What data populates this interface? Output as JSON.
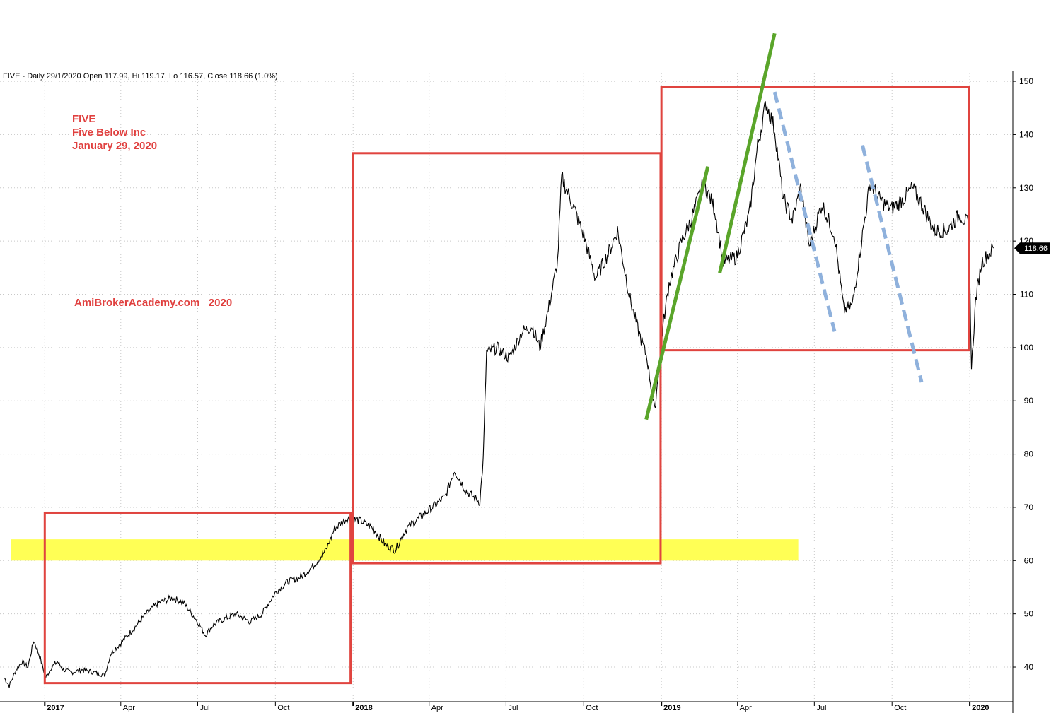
{
  "header": {
    "info": "FIVE - Daily 29/1/2020 Open 117.99, Hi 119.17, Lo 116.57, Close 118.66 (1.0%)"
  },
  "annotations": {
    "ticker": "FIVE",
    "company": "Five Below Inc",
    "date": "January 29, 2020",
    "watermark": "AmiBrokerAcademy.com   2020"
  },
  "last_price_label": "118.66",
  "colors": {
    "price_line": "#000000",
    "box": "#e0443f",
    "support_band": "#ffff55",
    "trend_up": "#5aa52a",
    "trend_down": "#8fb1dc",
    "grid": "#c8c8c8",
    "annotation_text": "#e0403f",
    "price_tag_bg": "#000000"
  },
  "chart_data": {
    "type": "line",
    "series": [
      {
        "values": [
          [
            "2016-11-14",
            38
          ],
          [
            "2016-11-20",
            36.5
          ],
          [
            "2016-11-28",
            39.5
          ],
          [
            "2016-12-05",
            41
          ],
          [
            "2016-12-12",
            40
          ],
          [
            "2016-12-19",
            45
          ],
          [
            "2016-12-26",
            42
          ],
          [
            "2017-01-02",
            38
          ],
          [
            "2017-01-09",
            40
          ],
          [
            "2017-01-16",
            41
          ],
          [
            "2017-01-23",
            39.5
          ],
          [
            "2017-02-01",
            39
          ],
          [
            "2017-02-15",
            39.5
          ],
          [
            "2017-03-01",
            39
          ],
          [
            "2017-03-13",
            38.5
          ],
          [
            "2017-03-20",
            42.5
          ],
          [
            "2017-04-01",
            44.5
          ],
          [
            "2017-04-15",
            47
          ],
          [
            "2017-05-01",
            50
          ],
          [
            "2017-05-15",
            52
          ],
          [
            "2017-06-01",
            53
          ],
          [
            "2017-06-15",
            52
          ],
          [
            "2017-07-01",
            48.5
          ],
          [
            "2017-07-10",
            46
          ],
          [
            "2017-07-20",
            48
          ],
          [
            "2017-08-01",
            49
          ],
          [
            "2017-08-15",
            50
          ],
          [
            "2017-09-01",
            48.5
          ],
          [
            "2017-09-15",
            50
          ],
          [
            "2017-10-01",
            54
          ],
          [
            "2017-10-15",
            56
          ],
          [
            "2017-11-01",
            57
          ],
          [
            "2017-11-15",
            59
          ],
          [
            "2017-11-30",
            62
          ],
          [
            "2017-12-10",
            66
          ],
          [
            "2017-12-25",
            68
          ],
          [
            "2018-01-10",
            67.5
          ],
          [
            "2018-01-25",
            66
          ],
          [
            "2018-02-08",
            63
          ],
          [
            "2018-02-20",
            62
          ],
          [
            "2018-03-05",
            66
          ],
          [
            "2018-03-20",
            68
          ],
          [
            "2018-04-05",
            70
          ],
          [
            "2018-04-20",
            72
          ],
          [
            "2018-05-01",
            77
          ],
          [
            "2018-05-15",
            73
          ],
          [
            "2018-05-31",
            71
          ],
          [
            "2018-06-04",
            79
          ],
          [
            "2018-06-08",
            99
          ],
          [
            "2018-06-20",
            100
          ],
          [
            "2018-07-05",
            98
          ],
          [
            "2018-07-20",
            103
          ],
          [
            "2018-08-01",
            104
          ],
          [
            "2018-08-10",
            100
          ],
          [
            "2018-08-20",
            107
          ],
          [
            "2018-08-31",
            116
          ],
          [
            "2018-09-05",
            132
          ],
          [
            "2018-09-20",
            126
          ],
          [
            "2018-10-01",
            121
          ],
          [
            "2018-10-15",
            113
          ],
          [
            "2018-10-31",
            118
          ],
          [
            "2018-11-10",
            122
          ],
          [
            "2018-11-25",
            109
          ],
          [
            "2018-12-05",
            103
          ],
          [
            "2018-12-15",
            98
          ],
          [
            "2018-12-24",
            88
          ],
          [
            "2019-01-02",
            103
          ],
          [
            "2019-01-10",
            112
          ],
          [
            "2019-01-25",
            120
          ],
          [
            "2019-02-05",
            124
          ],
          [
            "2019-02-20",
            131
          ],
          [
            "2019-03-05",
            126
          ],
          [
            "2019-03-15",
            116
          ],
          [
            "2019-03-31",
            117
          ],
          [
            "2019-04-15",
            125
          ],
          [
            "2019-04-25",
            138
          ],
          [
            "2019-05-05",
            146
          ],
          [
            "2019-05-15",
            141
          ],
          [
            "2019-05-25",
            128
          ],
          [
            "2019-06-05",
            124
          ],
          [
            "2019-06-15",
            130
          ],
          [
            "2019-06-25",
            119
          ],
          [
            "2019-07-10",
            127
          ],
          [
            "2019-07-25",
            121
          ],
          [
            "2019-08-05",
            107
          ],
          [
            "2019-08-15",
            108
          ],
          [
            "2019-08-25",
            119
          ],
          [
            "2019-09-05",
            131
          ],
          [
            "2019-09-15",
            128
          ],
          [
            "2019-09-30",
            126
          ],
          [
            "2019-10-15",
            128
          ],
          [
            "2019-10-25",
            130
          ],
          [
            "2019-11-05",
            127
          ],
          [
            "2019-11-20",
            122
          ],
          [
            "2019-12-05",
            122
          ],
          [
            "2019-12-20",
            125
          ],
          [
            "2019-12-31",
            123
          ],
          [
            "2020-01-03",
            96
          ],
          [
            "2020-01-08",
            109
          ],
          [
            "2020-01-15",
            116
          ],
          [
            "2020-01-29",
            118.66
          ]
        ]
      }
    ],
    "x_axis": {
      "type": "date",
      "range": [
        "2016-11-09",
        "2020-02-21"
      ],
      "ticks": [
        {
          "label": "2017",
          "date": "2017-01-01",
          "bold": true
        },
        {
          "label": "Apr",
          "date": "2017-04-01"
        },
        {
          "label": "Jul",
          "date": "2017-07-01"
        },
        {
          "label": "Oct",
          "date": "2017-10-01"
        },
        {
          "label": "2018",
          "date": "2018-01-01",
          "bold": true
        },
        {
          "label": "Apr",
          "date": "2018-04-01"
        },
        {
          "label": "Jul",
          "date": "2018-07-01"
        },
        {
          "label": "Oct",
          "date": "2018-10-01"
        },
        {
          "label": "2019",
          "date": "2019-01-01",
          "bold": true
        },
        {
          "label": "Apr",
          "date": "2019-04-01"
        },
        {
          "label": "Jul",
          "date": "2019-07-01"
        },
        {
          "label": "Oct",
          "date": "2019-10-01"
        },
        {
          "label": "2020",
          "date": "2020-01-01",
          "bold": true
        }
      ]
    },
    "y_axis": {
      "range": [
        33.5,
        152
      ],
      "position": "right",
      "ticks": [
        40,
        50,
        60,
        70,
        80,
        90,
        100,
        110,
        120,
        130,
        140,
        150
      ]
    },
    "grid": true,
    "boxes": [
      {
        "from": "2017-01-01",
        "to": "2017-12-29",
        "low": 37,
        "high": 69
      },
      {
        "from": "2018-01-01",
        "to": "2018-12-31",
        "low": 59.5,
        "high": 136.5
      },
      {
        "from": "2019-01-01",
        "to": "2019-12-31",
        "low": 99.5,
        "high": 149
      }
    ],
    "support_zone": {
      "from": "2016-11-22",
      "to": "2019-06-12",
      "low": 60,
      "high": 64
    },
    "trend_lines": [
      {
        "style": "up",
        "from": [
          "2018-12-14",
          86.5
        ],
        "to": [
          "2019-02-25",
          134
        ]
      },
      {
        "style": "up",
        "from": [
          "2019-03-11",
          114
        ],
        "to": [
          "2019-05-15",
          159
        ]
      },
      {
        "style": "down",
        "from": [
          "2019-05-15",
          148
        ],
        "to": [
          "2019-07-25",
          103
        ]
      },
      {
        "style": "down",
        "from": [
          "2019-08-27",
          138
        ],
        "to": [
          "2019-11-05",
          93.5
        ]
      }
    ]
  }
}
